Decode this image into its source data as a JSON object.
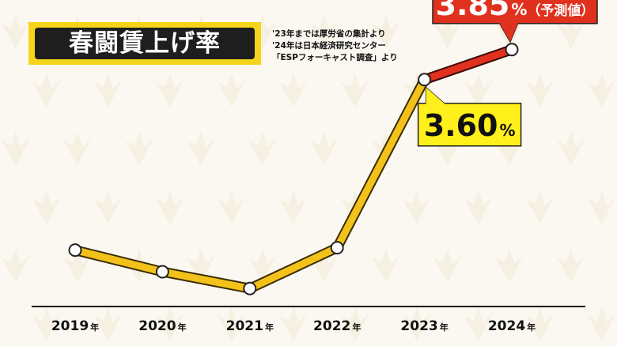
{
  "title": "春闘賃上げ率",
  "notes": [
    "'23年までは厚労省の集計より",
    "'24年は日本経済研究センター",
    "「ESPフォーキャスト調査」より"
  ],
  "colors": {
    "title_bg": "#1e1e1e",
    "title_frame": "#f5d51b",
    "line_actual": "#f3c21a",
    "line_forecast": "#e0311f",
    "callout_actual_bg": "#ffef1a",
    "callout_forecast_bg": "#e0311f",
    "axis": "#111111"
  },
  "chart_data": {
    "type": "line",
    "x": [
      "2019年",
      "2020年",
      "2021年",
      "2022年",
      "2023年",
      "2024年"
    ],
    "values": [
      2.18,
      2.0,
      1.86,
      2.2,
      3.6,
      3.85
    ],
    "forecast_from_index": 4,
    "annotations": [
      {
        "index": 4,
        "number": "3.60",
        "unit": "%",
        "suffix": ""
      },
      {
        "index": 5,
        "number": "3.85",
        "unit": "%",
        "suffix": "（予測値）"
      }
    ],
    "grid": false,
    "ylim": [
      1.5,
      4.0
    ]
  }
}
